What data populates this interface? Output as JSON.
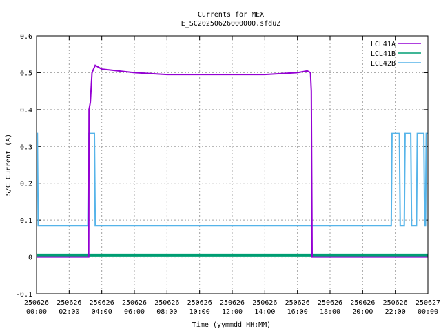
{
  "chart_data": {
    "type": "line",
    "title": "Currents for MEX",
    "subtitle": "E_SC20250626000000.sfduZ",
    "xlabel": "Time (yymmdd HH:MM)",
    "ylabel": "S/C Current (A)",
    "ylim": [
      -0.1,
      0.6
    ],
    "yticks": [
      "-0.1",
      "0",
      "0.1",
      "0.2",
      "0.3",
      "0.4",
      "0.5",
      "0.6"
    ],
    "xlim_hours": [
      0,
      24
    ],
    "xticks": [
      {
        "h": 0,
        "date": "250626",
        "time": "00:00"
      },
      {
        "h": 2,
        "date": "250626",
        "time": "02:00"
      },
      {
        "h": 4,
        "date": "250626",
        "time": "04:00"
      },
      {
        "h": 6,
        "date": "250626",
        "time": "06:00"
      },
      {
        "h": 8,
        "date": "250626",
        "time": "08:00"
      },
      {
        "h": 10,
        "date": "250626",
        "time": "10:00"
      },
      {
        "h": 12,
        "date": "250626",
        "time": "12:00"
      },
      {
        "h": 14,
        "date": "250626",
        "time": "14:00"
      },
      {
        "h": 16,
        "date": "250626",
        "time": "16:00"
      },
      {
        "h": 18,
        "date": "250626",
        "time": "18:00"
      },
      {
        "h": 20,
        "date": "250626",
        "time": "20:00"
      },
      {
        "h": 22,
        "date": "250626",
        "time": "22:00"
      },
      {
        "h": 24,
        "date": "250627",
        "time": "00:00"
      }
    ],
    "grid": true,
    "legend_position": "top-right",
    "series": [
      {
        "name": "LCL41A",
        "color": "#9400d3",
        "points": [
          [
            0,
            0.0
          ],
          [
            3.2,
            0.0
          ],
          [
            3.22,
            0.4
          ],
          [
            3.3,
            0.42
          ],
          [
            3.4,
            0.5
          ],
          [
            3.6,
            0.52
          ],
          [
            4.0,
            0.51
          ],
          [
            5.0,
            0.505
          ],
          [
            6.0,
            0.5
          ],
          [
            8.0,
            0.495
          ],
          [
            10.0,
            0.495
          ],
          [
            12.0,
            0.495
          ],
          [
            14.0,
            0.495
          ],
          [
            16.0,
            0.5
          ],
          [
            16.6,
            0.505
          ],
          [
            16.8,
            0.5
          ],
          [
            16.85,
            0.45
          ],
          [
            16.9,
            0.0
          ],
          [
            24,
            0.0
          ]
        ]
      },
      {
        "name": "LCL41B",
        "color": "#009e73",
        "points": [
          [
            0,
            0.005
          ],
          [
            24,
            0.005
          ]
        ]
      },
      {
        "name": "LCL42B",
        "color": "#56b4e9",
        "points": [
          [
            0,
            0.335
          ],
          [
            0.05,
            0.335
          ],
          [
            0.1,
            0.085
          ],
          [
            3.15,
            0.085
          ],
          [
            3.2,
            0.335
          ],
          [
            3.55,
            0.335
          ],
          [
            3.6,
            0.085
          ],
          [
            21.75,
            0.085
          ],
          [
            21.8,
            0.335
          ],
          [
            22.25,
            0.335
          ],
          [
            22.3,
            0.085
          ],
          [
            22.55,
            0.085
          ],
          [
            22.6,
            0.335
          ],
          [
            22.95,
            0.335
          ],
          [
            23.0,
            0.085
          ],
          [
            23.3,
            0.085
          ],
          [
            23.35,
            0.335
          ],
          [
            23.75,
            0.335
          ],
          [
            23.8,
            0.085
          ],
          [
            23.85,
            0.085
          ],
          [
            23.9,
            0.335
          ],
          [
            24,
            0.335
          ]
        ]
      }
    ]
  }
}
